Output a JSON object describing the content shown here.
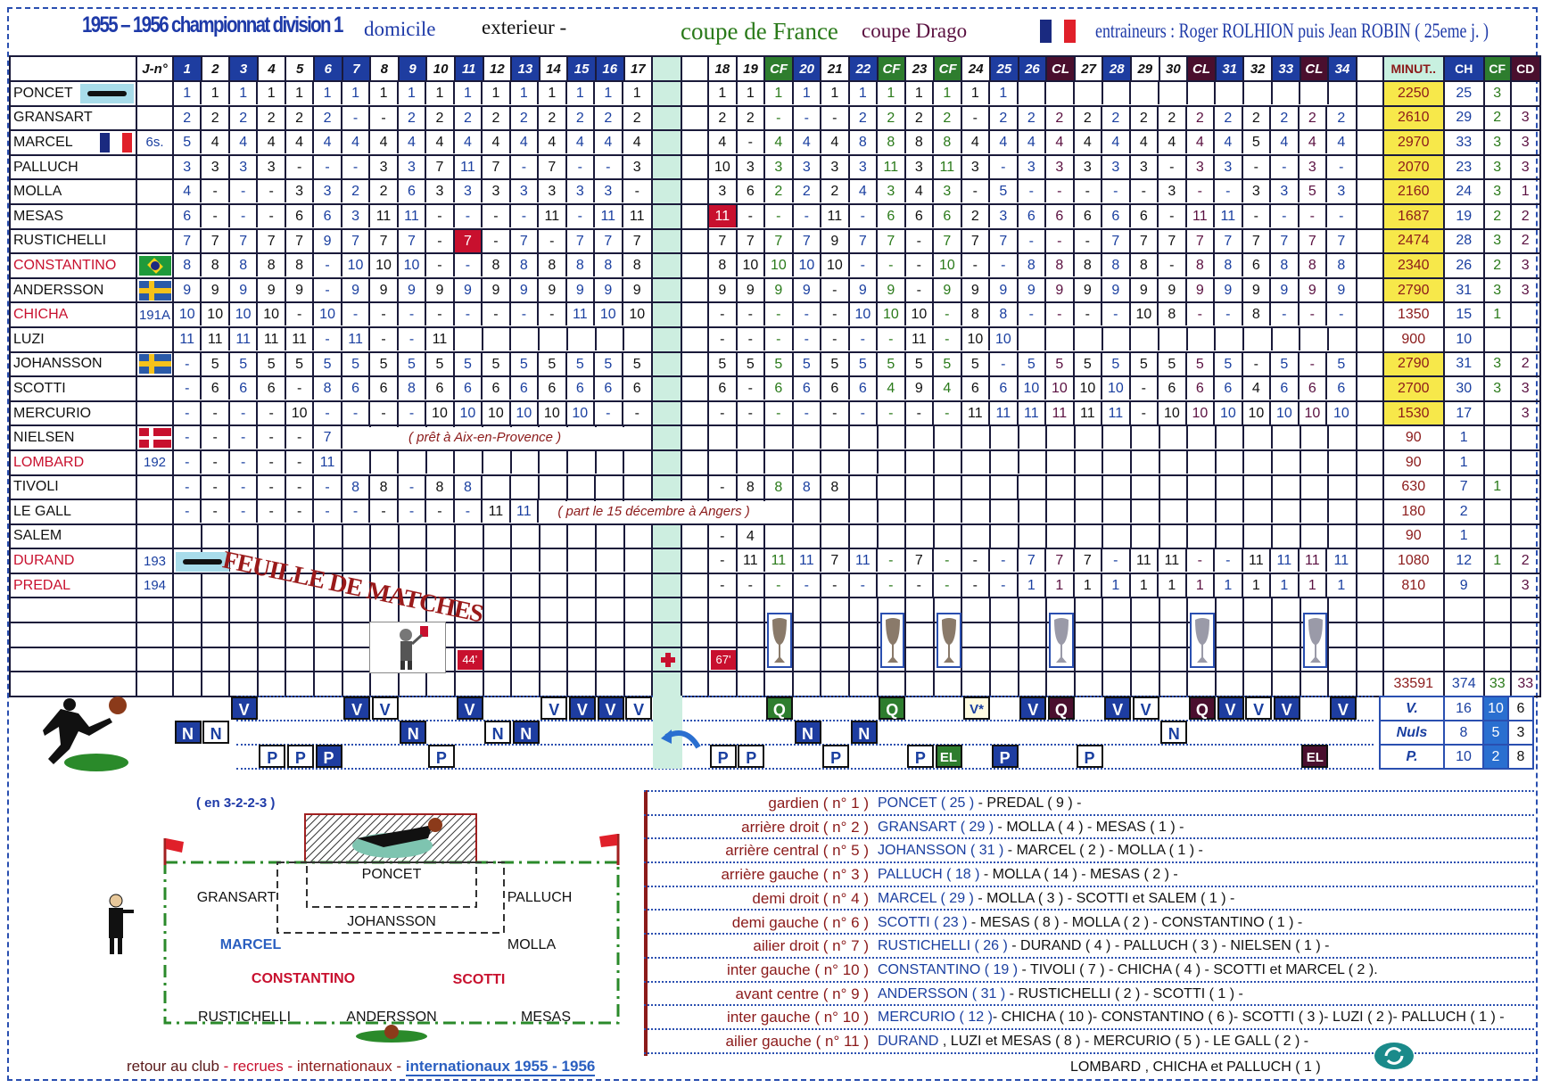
{
  "header": {
    "title": "1955 – 1956 championnat division 1",
    "home": "domicile",
    "away": "exterieur -",
    "cup_france": "coupe de France",
    "cup_drago": "coupe Drago",
    "coaches": "entraineurs : Roger ROLHION puis Jean ROBIN ( 25eme j. )"
  },
  "colors": {
    "home": "#1e3da0",
    "cf": "#2e7d2e",
    "cl": "#4a0f2e",
    "highlight": "#c8102e",
    "minutes_bg": "#f7e84a"
  },
  "table": {
    "name_header": "",
    "jersey_header": "J-n°",
    "columns": [
      {
        "l": "1",
        "t": "home"
      },
      {
        "l": "2",
        "t": "away"
      },
      {
        "l": "3",
        "t": "home"
      },
      {
        "l": "4",
        "t": "away"
      },
      {
        "l": "5",
        "t": "away"
      },
      {
        "l": "6",
        "t": "home"
      },
      {
        "l": "7",
        "t": "home"
      },
      {
        "l": "8",
        "t": "away"
      },
      {
        "l": "9",
        "t": "home"
      },
      {
        "l": "10",
        "t": "away"
      },
      {
        "l": "11",
        "t": "home"
      },
      {
        "l": "12",
        "t": "away"
      },
      {
        "l": "13",
        "t": "home"
      },
      {
        "l": "14",
        "t": "away"
      },
      {
        "l": "15",
        "t": "home"
      },
      {
        "l": "16",
        "t": "home"
      },
      {
        "l": "17",
        "t": "away"
      },
      {
        "l": "18",
        "t": "away"
      },
      {
        "l": "19",
        "t": "away"
      },
      {
        "l": "CF",
        "t": "cf"
      },
      {
        "l": "20",
        "t": "home"
      },
      {
        "l": "21",
        "t": "away"
      },
      {
        "l": "22",
        "t": "home"
      },
      {
        "l": "CF",
        "t": "cf"
      },
      {
        "l": "23",
        "t": "away"
      },
      {
        "l": "CF",
        "t": "cf"
      },
      {
        "l": "24",
        "t": "away"
      },
      {
        "l": "25",
        "t": "home"
      },
      {
        "l": "26",
        "t": "home"
      },
      {
        "l": "CL",
        "t": "cl"
      },
      {
        "l": "27",
        "t": "away"
      },
      {
        "l": "28",
        "t": "home"
      },
      {
        "l": "29",
        "t": "away"
      },
      {
        "l": "30",
        "t": "away"
      },
      {
        "l": "CL",
        "t": "cl"
      },
      {
        "l": "31",
        "t": "home"
      },
      {
        "l": "32",
        "t": "away"
      },
      {
        "l": "33",
        "t": "home"
      },
      {
        "l": "CL",
        "t": "cl"
      },
      {
        "l": "34",
        "t": "home"
      }
    ],
    "total_headers": [
      "MINUT..",
      "CH",
      "CF",
      "CD"
    ],
    "players": [
      {
        "name": "PONCET",
        "j": "",
        "badge": "keeper",
        "m1": "1 1 1 1 1 1 1 1 1 1 1 1 1 1 1 1 1",
        "m2": "1 1 1 1 1 1 1 1 1 1 1",
        "tot": [
          "2250",
          "25",
          "3",
          ""
        ],
        "hl": true
      },
      {
        "name": "GRANSART",
        "j": "",
        "m1": "2 2 2 2 2 2 - - 2 2 2 2 2 2 2 2 2",
        "m2": "2 2 - - - 2 2 2 2 - 2 2 2 2 2 2 2 2 2 2 2 2 2",
        "tot": [
          "2610",
          "29",
          "2",
          "3"
        ],
        "hl": true
      },
      {
        "name": "MARCEL",
        "j": "6s.",
        "badge": "france",
        "m1": "5 4 4 4 4 4 4 4 4 4 4 4 4 4 4 4 4",
        "m2": "4 - 4 4 4 8 8 8 8 4 4 4 4 4 4 4 4 4 4 5 4 4 4",
        "tot": [
          "2970",
          "33",
          "3",
          "3"
        ],
        "hl": true
      },
      {
        "name": "PALLUCH",
        "j": "",
        "m1": "3 3 3 3 - - - 3 3 7 11 7 - 7 - - 3",
        "m2": "10 3 3 3 3 3 11 3 11 3 - 3 3 3 3 3 - 3 3 - - 3 -",
        "tot": [
          "2070",
          "23",
          "3",
          "3"
        ],
        "hl": true
      },
      {
        "name": "MOLLA",
        "j": "",
        "m1": "4 - - - 3 3 2 2 6 3 3 3 3 3 3 3 -",
        "m2": "3 6 2 2 2 4 3 4 3 - 5 - - - - - 3 - - 3 3 5 3",
        "tot": [
          "2160",
          "24",
          "3",
          "1"
        ],
        "hl": true
      },
      {
        "name": "MESAS",
        "j": "",
        "m1": "6 - - - 6 6 3 11 11 - - - - 11 - 11 11",
        "m2": "11 - - - 11 - 6 6 6 2 3 6 6 6 6 6 - 11 11 - - - -",
        "tot": [
          "1687",
          "19",
          "2",
          "2"
        ],
        "hl": true,
        "red": [
          17
        ]
      },
      {
        "name": "RUSTICHELLI",
        "j": "",
        "m1": "7 7 7 7 7 9 7 7 7 - 7 - 7 - 7 7 7",
        "m2": "7 7 7 7 9 7 7 - 7 7 7 - - - 7 7 7 7 7 7 7 7 7",
        "tot": [
          "2474",
          "28",
          "3",
          "2"
        ],
        "hl": true,
        "red": [
          10
        ]
      },
      {
        "name": "CONSTANTINO",
        "j": "",
        "badge": "brazil",
        "recruit": true,
        "m1": "8 8 8 8 8 - 10 10 10 - - 8 8 8 8 8 8",
        "m2": "8 10 10 10 10 - - - 10 - - 8 8 8 8 8 - 8 8 6 8 8 8",
        "tot": [
          "2340",
          "26",
          "2",
          "3"
        ],
        "hl": true
      },
      {
        "name": "ANDERSSON",
        "j": "",
        "badge": "sweden",
        "m1": "9 9 9 9 9 - 9 9 9 9 9 9 9 9 9 9 9",
        "m2": "9 9 9 9 - 9 9 - 9 9 9 9 9 9 9 9 9 9 9 9 9 9 9",
        "tot": [
          "2790",
          "31",
          "3",
          "3"
        ],
        "hl": true
      },
      {
        "name": "CHICHA",
        "j": "191A",
        "recruit": true,
        "m1": "10 10 10 10 - 10 - - - - - - - - 11 10 10",
        "m2": "- - - - - 10 10 10 - 8 8 - - - - 10 8 - - 8 - - -",
        "tot": [
          "1350",
          "15",
          "1",
          ""
        ]
      },
      {
        "name": "LUZI",
        "j": "",
        "m1": "11 11 11 11 11 - 11 - - 11",
        "m2": "- - - - - - - 11 - 10 10",
        "tot": [
          "900",
          "10",
          "",
          ""
        ]
      },
      {
        "name": "JOHANSSON",
        "j": "",
        "badge": "sweden",
        "m1": "- 5 5 5 5 5 5 5 5 5 5 5 5 5 5 5 5",
        "m2": "5 5 5 5 5 5 5 5 5 5 - 5 5 5 5 5 5 5 5 - 5 - 5",
        "tot": [
          "2790",
          "31",
          "3",
          "2"
        ],
        "hl": true
      },
      {
        "name": "SCOTTI",
        "j": "",
        "m1": "- 6 6 6 - 8 6 6 8 6 6 6 6 6 6 6 6",
        "m2": "6 - 6 6 6 6 4 9 4 6 6 10 10 10 10 - 6 6 6 4 6 6 6",
        "tot": [
          "2700",
          "30",
          "3",
          "3"
        ],
        "hl": true
      },
      {
        "name": "MERCURIO",
        "j": "",
        "m1": "- - - - 10 - - - - 10 10 10 10 10 10 - -",
        "m2": "- - - - - - - - - 11 11 11 11 11 11 - 10 10 10 10 10 10 10",
        "tot": [
          "1530",
          "17",
          "",
          "3"
        ],
        "hl": true
      },
      {
        "name": "NIELSEN",
        "j": "",
        "badge": "denmark",
        "m1": "- - - - - 7",
        "m2": "",
        "tot": [
          "90",
          "1",
          "",
          ""
        ],
        "note": "( prêt à Aix-en-Provence )"
      },
      {
        "name": "LOMBARD",
        "j": "192",
        "recruit": true,
        "m1": "- - - - - 11",
        "m2": "",
        "tot": [
          "90",
          "1",
          "",
          ""
        ]
      },
      {
        "name": "TIVOLI",
        "j": "",
        "m1": "- - - - - - 8 8 - 8 8",
        "m2": "- 8 8 8 8",
        "tot": [
          "630",
          "7",
          "1",
          ""
        ]
      },
      {
        "name": "LE GALL",
        "j": "",
        "m1": "- - - - - - - - - - - 11 11",
        "m2": "",
        "tot": [
          "180",
          "2",
          "",
          ""
        ],
        "note": "( part le 15 décembre à Angers )"
      },
      {
        "name": "SALEM",
        "j": "",
        "m1": "",
        "m2": "- 4",
        "tot": [
          "90",
          "1",
          "",
          ""
        ]
      },
      {
        "name": "DURAND",
        "j": "193",
        "recruit": true,
        "m1": "",
        "m2": "- 11 11 11 7 11 - 7 - - - 7 7 7 - 11 11 - - 11 11 11 11",
        "tot": [
          "1080",
          "12",
          "1",
          "2"
        ]
      },
      {
        "name": "PREDAL",
        "j": "194",
        "recruit": true,
        "badge2": "keeper",
        "m1": "",
        "m2": "- - - - - - - - - - - 1 1 1 1 1 1 1 1 1 1 1 1",
        "tot": [
          "810",
          "9",
          "",
          "3"
        ]
      }
    ],
    "events": {
      "goal_minute_first": "44'",
      "goal_minute_second": "67'"
    },
    "totals": [
      "33591",
      "374",
      "33",
      "33"
    ],
    "stamp": "FEUILLE DE MATCHES"
  },
  "results": {
    "values": [
      "N",
      "N",
      "V",
      "P",
      "P",
      "P",
      "V",
      "V",
      "N",
      "P",
      "V",
      "N",
      "N",
      "V",
      "V",
      "V",
      "V",
      "P",
      "P",
      "Q",
      "N",
      "P",
      "N",
      "Q",
      "P",
      "EL",
      "V*",
      "P",
      "V",
      "Q",
      "P",
      "V",
      "V",
      "N",
      "Q",
      "V",
      "V",
      "V",
      "EL",
      "V"
    ],
    "summary": [
      {
        "label": "V.",
        "total": "16",
        "home": "10",
        "away": "6"
      },
      {
        "label": "Nuls",
        "total": "8",
        "home": "5",
        "away": "3"
      },
      {
        "label": "P.",
        "total": "10",
        "home": "2",
        "away": "8"
      }
    ]
  },
  "formation": {
    "system": "( en 3-2-2-3 )",
    "players": [
      {
        "n": "PONCET",
        "c": "#111"
      },
      {
        "n": "GRANSART",
        "c": "#111"
      },
      {
        "n": "PALLUCH",
        "c": "#111"
      },
      {
        "n": "JOHANSSON",
        "c": "#111"
      },
      {
        "n": "MARCEL",
        "c": "#2a5fc0"
      },
      {
        "n": "MOLLA",
        "c": "#111"
      },
      {
        "n": "CONSTANTINO",
        "c": "#c8102e"
      },
      {
        "n": "SCOTTI",
        "c": "#c8102e"
      },
      {
        "n": "RUSTICHELLI",
        "c": "#111"
      },
      {
        "n": "ANDERSSON",
        "c": "#111"
      },
      {
        "n": "MESAS",
        "c": "#111"
      }
    ]
  },
  "positions": [
    {
      "label": "gardien ( n° 1 )",
      "first": "PONCET ( 25 )",
      "rest": " - PREDAL ( 9 ) -"
    },
    {
      "label": "arrière droit ( n° 2 )",
      "first": "GRANSART ( 29 )",
      "rest": " - MOLLA ( 4 ) - MESAS ( 1 ) -"
    },
    {
      "label": "arrière central ( n° 5 )",
      "first": "JOHANSSON ( 31 )",
      "rest": " - MARCEL ( 2 ) - MOLLA ( 1 ) -"
    },
    {
      "label": "arrière gauche ( n° 3 )",
      "first": "PALLUCH ( 18 )",
      "rest": " - MOLLA ( 14 ) - MESAS ( 2 ) -"
    },
    {
      "label": "demi droit ( n° 4 )",
      "first": "MARCEL ( 29 )",
      "rest": " - MOLLA ( 3 ) - SCOTTI et SALEM ( 1 ) -"
    },
    {
      "label": "demi  gauche ( n° 6 )",
      "first": "SCOTTI ( 23 )",
      "rest": " - MESAS ( 8 ) - MOLLA ( 2 ) - CONSTANTINO ( 1 ) -"
    },
    {
      "label": "ailier droit  ( n° 7 )",
      "first": "RUSTICHELLI ( 26 )",
      "rest": " - DURAND ( 4 ) - PALLUCH ( 3 ) - NIELSEN ( 1 ) -"
    },
    {
      "label": "inter gauche ( n° 10 )",
      "first": "CONSTANTINO ( 19 )",
      "rest": " - TIVOLI ( 7 ) - CHICHA ( 4 ) - SCOTTI et MARCEL ( 2 )."
    },
    {
      "label": "avant centre ( n° 9 )",
      "first": "ANDERSSON ( 31 )",
      "rest": " - RUSTICHELLI ( 2 ) - SCOTTI ( 1 ) -"
    },
    {
      "label": "inter gauche ( n° 10 )",
      "first": "MERCURIO ( 12 )",
      "rest": "- CHICHA ( 10 )- CONSTANTINO ( 6 )- SCOTTI ( 3 )- LUZI ( 2 )- PALLUCH ( 1 ) -"
    },
    {
      "label": "ailier gauche ( n° 11 )",
      "first": "DURAND",
      "rest": " , LUZI et MESAS ( 8 ) - MERCURIO ( 5 ) - LE GALL ( 2 ) -"
    }
  ],
  "positions_extra": "LOMBARD , CHICHA et PALLUCH ( 1 )",
  "footer": {
    "l1": "retour au club",
    "s1": " - ",
    "l2": "recrues",
    "s2": " - ",
    "l3": "internationaux",
    "s3": " - ",
    "l4": "internationaux 1955 - 1956"
  }
}
